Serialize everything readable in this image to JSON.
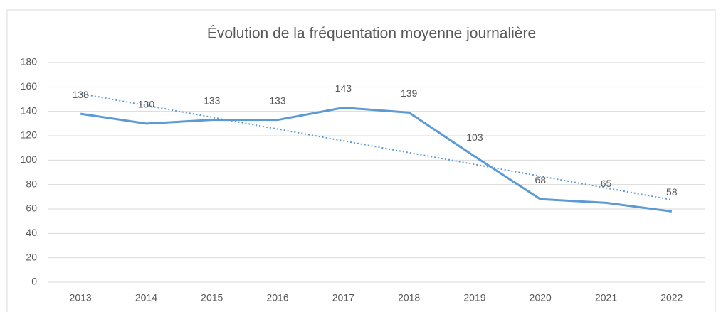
{
  "chart_data": {
    "type": "line",
    "title": "Évolution de la fréquentation moyenne journalière",
    "categories": [
      "2013",
      "2014",
      "2015",
      "2016",
      "2017",
      "2018",
      "2019",
      "2020",
      "2021",
      "2022"
    ],
    "values": [
      138,
      130,
      133,
      133,
      143,
      139,
      103,
      68,
      65,
      58
    ],
    "color": "#5b9bd5",
    "trendline": "linear",
    "ylim": [
      0,
      180
    ],
    "yticks": [
      0,
      20,
      40,
      60,
      80,
      100,
      120,
      140,
      160,
      180
    ],
    "grid": true
  }
}
